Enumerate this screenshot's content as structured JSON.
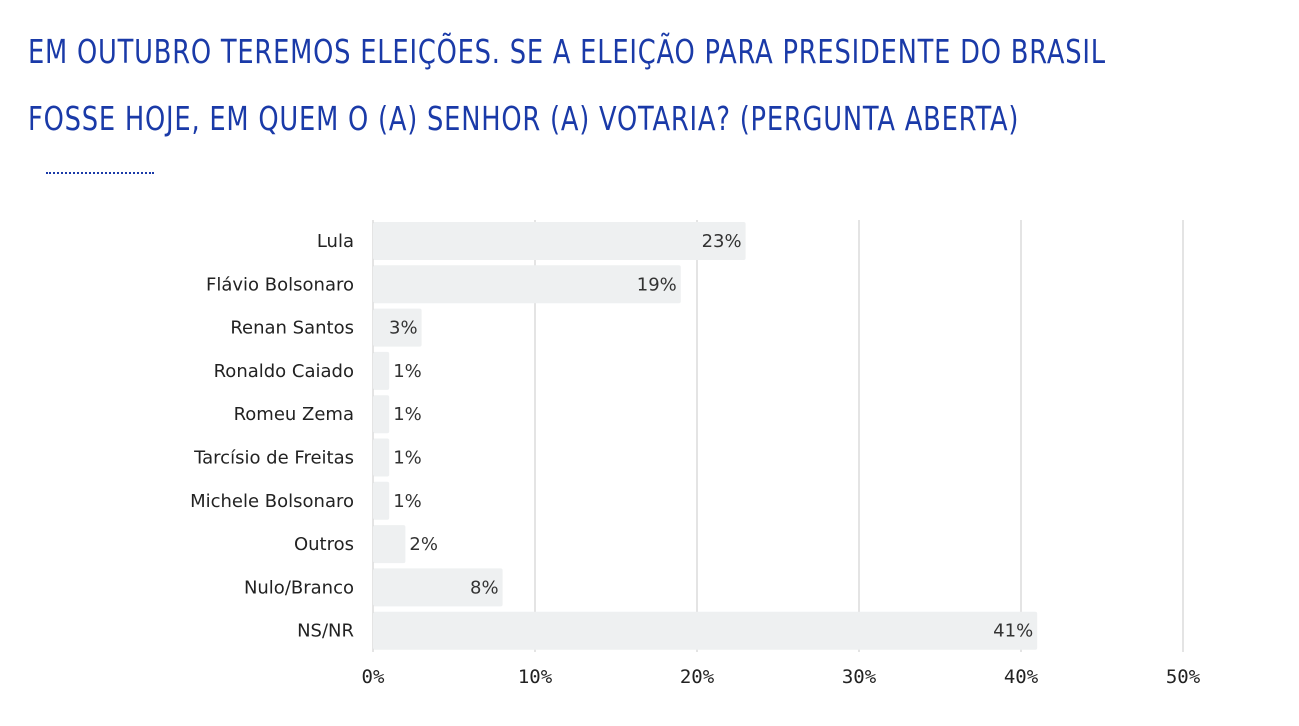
{
  "title": {
    "line1": "EM OUTUBRO TEREMOS ELEIÇÕES. SE A ELEIÇÃO PARA PRESIDENTE DO BRASIL",
    "line2": "FOSSE HOJE, EM QUEM O (A) SENHOR (A) VOTARIA? (PERGUNTA ABERTA)"
  },
  "colors": {
    "title": "#1a3aa8",
    "bar": "#eef0f1",
    "grid": "#c8c8c8",
    "text": "#222222"
  },
  "chart_data": {
    "type": "bar",
    "orientation": "horizontal",
    "categories": [
      "Lula",
      "Flávio Bolsonaro",
      "Renan Santos",
      "Ronaldo Caiado",
      "Romeu Zema",
      "Tarcísio de Freitas",
      "Michele Bolsonaro",
      "Outros",
      "Nulo/Branco",
      "NS/NR"
    ],
    "values": [
      23,
      19,
      3,
      1,
      1,
      1,
      1,
      2,
      8,
      41
    ],
    "value_labels": [
      "23%",
      "19%",
      "3%",
      "1%",
      "1%",
      "1%",
      "1%",
      "2%",
      "8%",
      "41%"
    ],
    "xlim": [
      0,
      50
    ],
    "ticks": [
      0,
      10,
      20,
      30,
      40,
      50
    ],
    "tick_labels": [
      "0%",
      "10%",
      "20%",
      "30%",
      "40%",
      "50%"
    ],
    "grid": true,
    "legend": "none"
  }
}
